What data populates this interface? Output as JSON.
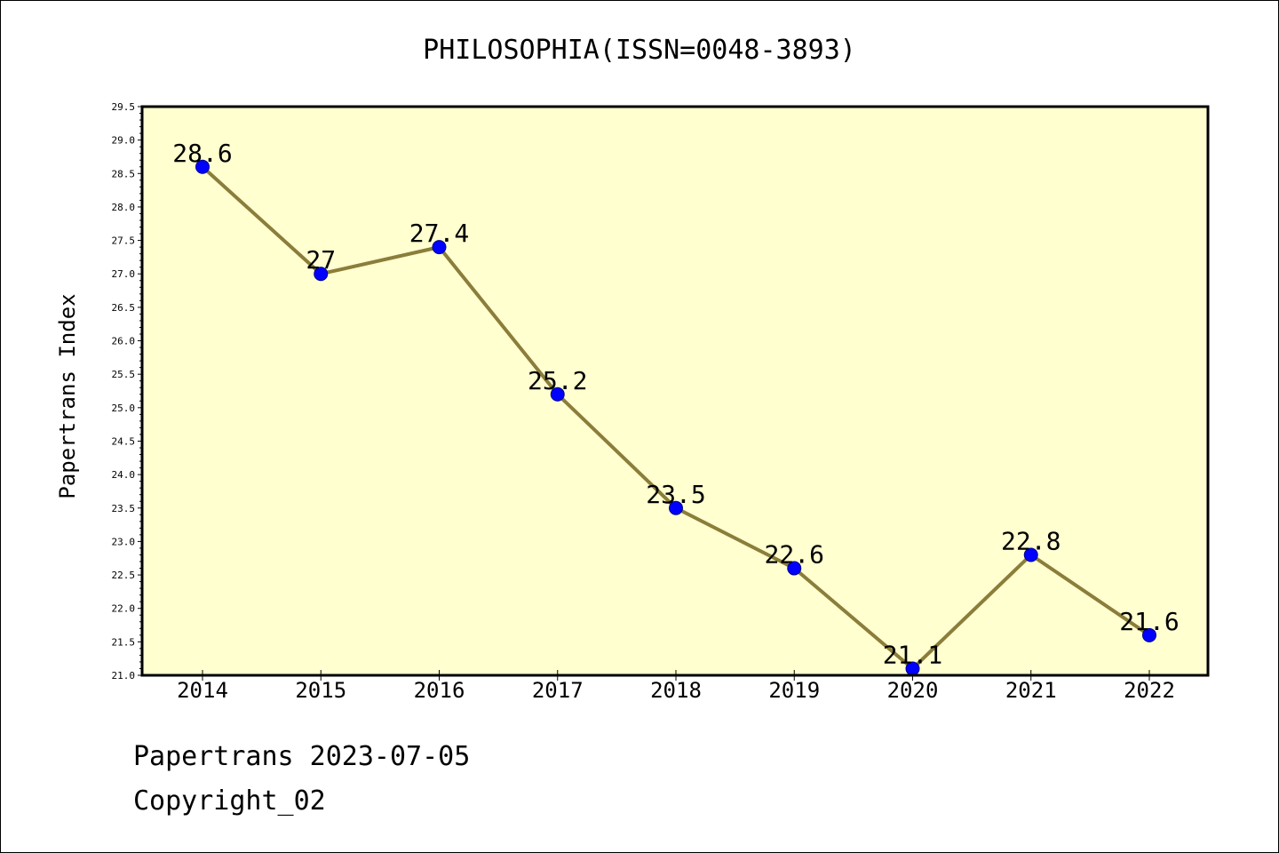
{
  "chart_data": {
    "type": "line",
    "title": "PHILOSOPHIA(ISSN=0048-3893)",
    "xlabel": "",
    "ylabel": "Papertrans Index",
    "categories": [
      "2014",
      "2015",
      "2016",
      "2017",
      "2018",
      "2019",
      "2020",
      "2021",
      "2022"
    ],
    "series": [
      {
        "values": [
          28.6,
          27.0,
          27.4,
          25.2,
          23.5,
          22.6,
          21.1,
          22.8,
          21.6
        ],
        "point_labels": [
          "28.6",
          "27",
          "27.4",
          "25.2",
          "23.5",
          "22.6",
          "21.1",
          "22.8",
          "21.6"
        ]
      }
    ],
    "ylim": [
      21.0,
      29.5
    ],
    "yticks": [
      "21.0",
      "21.5",
      "22.0",
      "22.5",
      "23.0",
      "23.5",
      "24.0",
      "24.5",
      "25.0",
      "25.5",
      "26.0",
      "26.5",
      "27.0",
      "27.5",
      "28.0",
      "28.5",
      "29.0",
      "29.5"
    ],
    "grid": false,
    "colors": {
      "plot_background": "#ffffd0",
      "line": "#8b7d3a",
      "marker": "#0000ff",
      "marker_edge": "#00008b"
    }
  },
  "footer": {
    "line1": "Papertrans 2023-07-05",
    "line2": "Copyright_02"
  }
}
